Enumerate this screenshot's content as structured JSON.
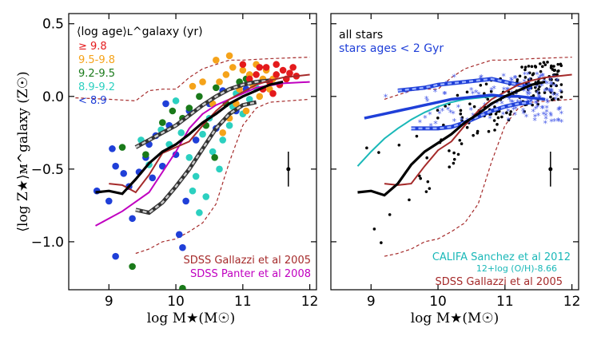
{
  "chart_data": [
    {
      "type": "scatter",
      "panel": "left",
      "ylabel": "⟨log Z★⟩ᴍ^galaxy (Z☉)",
      "xlabel": "log M★(M☉)",
      "xlim": [
        8.4,
        12.1
      ],
      "ylim": [
        -1.33,
        0.57
      ],
      "xticks": [
        9,
        10,
        11,
        12
      ],
      "yticks": [
        0.5,
        0.0,
        -0.5,
        -1.0
      ],
      "yticklabels": [
        "0.5",
        "0.0",
        "−0.5",
        "−1.0"
      ],
      "legend_title": "⟨log age⟩ʟ^galaxy  (yr)",
      "age_bins": [
        {
          "label": "≥ 9.8",
          "color": "#e41a1c"
        },
        {
          "label": "9.5-9.8",
          "color": "#f5a31a"
        },
        {
          "label": "9.2-9.5",
          "color": "#1a7a1a"
        },
        {
          "label": "8.9-9.2",
          "color": "#2cd0c0"
        },
        {
          "label": "< 8.9",
          "color": "#1f3fd8"
        }
      ],
      "series": [
        {
          "name": "median",
          "color": "#000000",
          "x": [
            8.8,
            9.0,
            9.2,
            9.4,
            9.6,
            9.8,
            10.0,
            10.2,
            10.4,
            10.6,
            10.8,
            11.0,
            11.2,
            11.4,
            11.6
          ],
          "y": [
            -0.66,
            -0.65,
            -0.67,
            -0.57,
            -0.46,
            -0.38,
            -0.33,
            -0.26,
            -0.18,
            -0.12,
            -0.05,
            0.0,
            0.04,
            0.08,
            0.1
          ]
        },
        {
          "name": "SDSS Gallazzi et al 2005",
          "color": "#a52a2a",
          "x": [
            9.0,
            9.2,
            9.4,
            9.6,
            9.8,
            10.0,
            10.2,
            10.4,
            10.6,
            10.8,
            11.0,
            11.2,
            11.4,
            11.6,
            12.0
          ],
          "y": [
            -0.6,
            -0.61,
            -0.66,
            -0.54,
            -0.39,
            -0.35,
            -0.31,
            -0.2,
            -0.1,
            -0.02,
            0.03,
            0.08,
            0.11,
            0.13,
            0.15
          ]
        },
        {
          "name": "SDSS Panter et al 2008",
          "color": "#c000c0",
          "x": [
            8.8,
            9.2,
            9.6,
            9.8,
            10.0,
            10.2,
            10.4,
            10.6,
            10.8,
            11.0,
            11.2,
            11.6,
            12.0
          ],
          "y": [
            -0.89,
            -0.79,
            -0.66,
            -0.52,
            -0.38,
            -0.22,
            -0.12,
            -0.06,
            -0.02,
            0.02,
            0.06,
            0.09,
            0.1
          ]
        },
        {
          "name": "upper band",
          "color": "#222222",
          "x": [
            9.4,
            9.6,
            9.8,
            10.0,
            10.2,
            10.4,
            10.6,
            10.8,
            11.0,
            11.2,
            11.4
          ],
          "y": [
            -0.35,
            -0.3,
            -0.25,
            -0.2,
            -0.13,
            -0.06,
            0.0,
            0.05,
            0.08,
            0.1,
            0.11
          ]
        },
        {
          "name": "lower band",
          "color": "#222222",
          "x": [
            9.4,
            9.6,
            9.8,
            10.0,
            10.2,
            10.4,
            10.6,
            10.8,
            11.0,
            11.2
          ],
          "y": [
            -0.78,
            -0.8,
            -0.73,
            -0.62,
            -0.5,
            -0.36,
            -0.22,
            -0.12,
            -0.06,
            -0.04
          ]
        },
        {
          "name": "Gallazzi upper",
          "color": "#a52a2a",
          "x": [
            8.5,
            9.0,
            9.4,
            9.6,
            9.8,
            10.0,
            10.2,
            10.4,
            10.6,
            10.8,
            11.0,
            11.4,
            12.0
          ],
          "y": [
            -0.01,
            -0.02,
            -0.03,
            0.04,
            0.05,
            0.05,
            0.13,
            0.19,
            0.22,
            0.25,
            0.25,
            0.26,
            0.27
          ]
        },
        {
          "name": "Gallazzi lower",
          "color": "#a52a2a",
          "x": [
            9.4,
            9.6,
            9.8,
            10.0,
            10.2,
            10.4,
            10.6,
            10.8,
            11.0,
            11.2,
            11.4,
            12.0
          ],
          "y": [
            -1.08,
            -1.05,
            -1.0,
            -0.98,
            -0.93,
            -0.87,
            -0.74,
            -0.45,
            -0.2,
            -0.08,
            -0.04,
            -0.02
          ]
        }
      ],
      "errorbar": {
        "x": 11.68,
        "y": -0.5,
        "err": 0.12
      },
      "points": [
        {
          "x": 8.82,
          "y": -0.65,
          "c": 4
        },
        {
          "x": 9.0,
          "y": -0.72,
          "c": 4
        },
        {
          "x": 9.05,
          "y": -0.36,
          "c": 4
        },
        {
          "x": 9.1,
          "y": -0.48,
          "c": 4
        },
        {
          "x": 9.22,
          "y": -0.53,
          "c": 4
        },
        {
          "x": 9.3,
          "y": -0.62,
          "c": 4
        },
        {
          "x": 9.1,
          "y": -1.1,
          "c": 4
        },
        {
          "x": 9.35,
          "y": -0.84,
          "c": 4
        },
        {
          "x": 9.45,
          "y": -0.52,
          "c": 4
        },
        {
          "x": 9.55,
          "y": -0.42,
          "c": 4
        },
        {
          "x": 9.6,
          "y": -0.33,
          "c": 4
        },
        {
          "x": 9.7,
          "y": -0.27,
          "c": 4
        },
        {
          "x": 9.65,
          "y": -0.56,
          "c": 4
        },
        {
          "x": 9.8,
          "y": -0.48,
          "c": 4
        },
        {
          "x": 9.9,
          "y": -0.2,
          "c": 4
        },
        {
          "x": 9.85,
          "y": -0.05,
          "c": 4
        },
        {
          "x": 10.0,
          "y": -0.4,
          "c": 4
        },
        {
          "x": 10.05,
          "y": -0.95,
          "c": 4
        },
        {
          "x": 10.1,
          "y": -1.04,
          "c": 4
        },
        {
          "x": 10.15,
          "y": -0.72,
          "c": 4
        },
        {
          "x": 10.3,
          "y": -0.3,
          "c": 4
        },
        {
          "x": 10.2,
          "y": -0.1,
          "c": 4
        },
        {
          "x": 10.5,
          "y": -0.05,
          "c": 4
        },
        {
          "x": 10.6,
          "y": -0.22,
          "c": 4
        },
        {
          "x": 10.7,
          "y": 0.04,
          "c": 4
        },
        {
          "x": 10.9,
          "y": -0.1,
          "c": 4
        },
        {
          "x": 11.05,
          "y": 0.05,
          "c": 4
        },
        {
          "x": 9.48,
          "y": -0.3,
          "c": 3
        },
        {
          "x": 9.6,
          "y": -0.47,
          "c": 3
        },
        {
          "x": 9.78,
          "y": -0.23,
          "c": 3
        },
        {
          "x": 9.9,
          "y": -0.33,
          "c": 3
        },
        {
          "x": 10.08,
          "y": -0.25,
          "c": 3
        },
        {
          "x": 10.2,
          "y": -0.42,
          "c": 3
        },
        {
          "x": 10.3,
          "y": -0.55,
          "c": 3
        },
        {
          "x": 10.4,
          "y": -0.26,
          "c": 3
        },
        {
          "x": 10.5,
          "y": -0.15,
          "c": 3
        },
        {
          "x": 10.55,
          "y": -0.38,
          "c": 3
        },
        {
          "x": 10.65,
          "y": -0.5,
          "c": 3
        },
        {
          "x": 10.7,
          "y": -0.3,
          "c": 3
        },
        {
          "x": 10.8,
          "y": -0.2,
          "c": 3
        },
        {
          "x": 10.85,
          "y": -0.07,
          "c": 3
        },
        {
          "x": 10.9,
          "y": 0.02,
          "c": 3
        },
        {
          "x": 11.0,
          "y": -0.12,
          "c": 3
        },
        {
          "x": 11.1,
          "y": -0.02,
          "c": 3
        },
        {
          "x": 11.2,
          "y": 0.06,
          "c": 3
        },
        {
          "x": 10.25,
          "y": -0.65,
          "c": 3
        },
        {
          "x": 10.35,
          "y": -0.8,
          "c": 3
        },
        {
          "x": 10.45,
          "y": -0.69,
          "c": 3
        },
        {
          "x": 10.0,
          "y": -0.03,
          "c": 3
        },
        {
          "x": 9.2,
          "y": -0.35,
          "c": 2
        },
        {
          "x": 9.55,
          "y": -0.4,
          "c": 2
        },
        {
          "x": 9.8,
          "y": -0.18,
          "c": 2
        },
        {
          "x": 9.95,
          "y": -0.1,
          "c": 2
        },
        {
          "x": 10.1,
          "y": -0.15,
          "c": 2
        },
        {
          "x": 10.2,
          "y": -0.08,
          "c": 2
        },
        {
          "x": 10.35,
          "y": 0.0,
          "c": 2
        },
        {
          "x": 10.45,
          "y": -0.2,
          "c": 2
        },
        {
          "x": 10.6,
          "y": 0.06,
          "c": 2
        },
        {
          "x": 10.75,
          "y": -0.05,
          "c": 2
        },
        {
          "x": 10.95,
          "y": 0.1,
          "c": 2
        },
        {
          "x": 11.05,
          "y": 0.12,
          "c": 2
        },
        {
          "x": 9.35,
          "y": -1.17,
          "c": 2
        },
        {
          "x": 10.1,
          "y": -1.32,
          "c": 2
        },
        {
          "x": 10.58,
          "y": -0.42,
          "c": 2
        },
        {
          "x": 10.25,
          "y": 0.07,
          "c": 1
        },
        {
          "x": 10.4,
          "y": 0.1,
          "c": 1
        },
        {
          "x": 10.55,
          "y": -0.05,
          "c": 1
        },
        {
          "x": 10.65,
          "y": 0.1,
          "c": 1
        },
        {
          "x": 10.75,
          "y": 0.15,
          "c": 1
        },
        {
          "x": 10.8,
          "y": -0.15,
          "c": 1
        },
        {
          "x": 10.85,
          "y": 0.2,
          "c": 1
        },
        {
          "x": 10.95,
          "y": 0.05,
          "c": 1
        },
        {
          "x": 11.0,
          "y": 0.18,
          "c": 1
        },
        {
          "x": 11.05,
          "y": -0.1,
          "c": 1
        },
        {
          "x": 11.1,
          "y": 0.15,
          "c": 1
        },
        {
          "x": 11.15,
          "y": 0.08,
          "c": 1
        },
        {
          "x": 11.2,
          "y": 0.22,
          "c": 1
        },
        {
          "x": 11.25,
          "y": 0.0,
          "c": 1
        },
        {
          "x": 11.3,
          "y": 0.12,
          "c": 1
        },
        {
          "x": 11.35,
          "y": 0.18,
          "c": 1
        },
        {
          "x": 11.4,
          "y": 0.05,
          "c": 1
        },
        {
          "x": 10.7,
          "y": -0.25,
          "c": 1
        },
        {
          "x": 10.9,
          "y": -0.05,
          "c": 1
        },
        {
          "x": 11.45,
          "y": 0.12,
          "c": 1
        },
        {
          "x": 10.6,
          "y": 0.25,
          "c": 1
        },
        {
          "x": 10.8,
          "y": 0.28,
          "c": 1
        },
        {
          "x": 11.1,
          "y": 0.12,
          "c": 0
        },
        {
          "x": 11.2,
          "y": 0.15,
          "c": 0
        },
        {
          "x": 11.3,
          "y": 0.05,
          "c": 0
        },
        {
          "x": 11.35,
          "y": 0.2,
          "c": 0
        },
        {
          "x": 11.4,
          "y": 0.1,
          "c": 0
        },
        {
          "x": 11.5,
          "y": 0.15,
          "c": 0
        },
        {
          "x": 11.55,
          "y": 0.08,
          "c": 0
        },
        {
          "x": 11.6,
          "y": 0.18,
          "c": 0
        },
        {
          "x": 11.65,
          "y": 0.12,
          "c": 0
        },
        {
          "x": 11.7,
          "y": 0.16,
          "c": 0
        },
        {
          "x": 11.75,
          "y": 0.2,
          "c": 0
        },
        {
          "x": 11.5,
          "y": 0.22,
          "c": 0
        },
        {
          "x": 11.8,
          "y": 0.14,
          "c": 0
        },
        {
          "x": 11.25,
          "y": 0.2,
          "c": 0
        },
        {
          "x": 11.45,
          "y": 0.02,
          "c": 0
        },
        {
          "x": 11.0,
          "y": 0.22,
          "c": 0
        }
      ],
      "annotations": [
        {
          "text": "SDSS Gallazzi et al 2005",
          "color": "#a52a2a"
        },
        {
          "text": "SDSS Panter et al 2008",
          "color": "#c000c0"
        }
      ]
    },
    {
      "type": "scatter",
      "panel": "right",
      "xlabel": "log M★(M☉)",
      "xlim": [
        8.4,
        12.1
      ],
      "ylim": [
        -1.33,
        0.57
      ],
      "xticks": [
        9,
        10,
        11,
        12
      ],
      "legend": [
        {
          "text": "all stars",
          "color": "#000000"
        },
        {
          "text": "stars ages < 2 Gyr",
          "color": "#1f3fd8"
        }
      ],
      "series": [
        {
          "name": "all stars median",
          "color": "#000000",
          "x": [
            8.8,
            9.0,
            9.2,
            9.4,
            9.6,
            9.8,
            10.0,
            10.2,
            10.4,
            10.6,
            10.8,
            11.0,
            11.2,
            11.4,
            11.6
          ],
          "y": [
            -0.66,
            -0.65,
            -0.68,
            -0.6,
            -0.47,
            -0.38,
            -0.32,
            -0.26,
            -0.18,
            -0.12,
            -0.05,
            0.0,
            0.04,
            0.08,
            0.1
          ]
        },
        {
          "name": "young stars median",
          "color": "#1f3fd8",
          "x": [
            8.9,
            9.2,
            9.4,
            9.6,
            9.8,
            10.0,
            10.2,
            10.4,
            10.6,
            10.8,
            11.0,
            11.2,
            11.4,
            11.6
          ],
          "y": [
            -0.15,
            -0.12,
            -0.1,
            -0.08,
            -0.06,
            -0.04,
            -0.02,
            -0.01,
            0.0,
            0.01,
            0.0,
            0.0,
            -0.01,
            -0.02
          ]
        },
        {
          "name": "CALIFA Sanchez et al 2012",
          "color": "#1ab8b8",
          "x": [
            8.8,
            9.0,
            9.2,
            9.4,
            9.6,
            9.8,
            10.0,
            10.2,
            10.4,
            10.6,
            10.8,
            11.0,
            11.2
          ],
          "y": [
            -0.48,
            -0.38,
            -0.29,
            -0.22,
            -0.16,
            -0.11,
            -0.07,
            -0.04,
            -0.02,
            -0.01,
            0.0,
            0.0,
            0.0
          ]
        },
        {
          "name": "SDSS Gallazzi et al 2005",
          "color": "#a52a2a",
          "x": [
            9.2,
            9.4,
            9.6,
            9.8,
            10.0,
            10.2,
            10.4,
            10.6,
            10.8,
            11.0,
            11.2,
            11.4,
            11.6,
            12.0
          ],
          "y": [
            -0.6,
            -0.61,
            -0.6,
            -0.48,
            -0.37,
            -0.31,
            -0.2,
            -0.1,
            -0.02,
            0.03,
            0.08,
            0.11,
            0.13,
            0.15
          ]
        },
        {
          "name": "young upper band",
          "color": "#1f3fd8",
          "x": [
            9.4,
            9.6,
            9.8,
            10.0,
            10.2,
            10.4,
            10.6,
            10.8,
            11.0,
            11.2,
            11.4
          ],
          "y": [
            0.04,
            0.05,
            0.06,
            0.08,
            0.09,
            0.1,
            0.11,
            0.12,
            0.1,
            0.08,
            0.06
          ]
        },
        {
          "name": "young lower band",
          "color": "#1f3fd8",
          "x": [
            9.6,
            9.8,
            10.0,
            10.2,
            10.4,
            10.6,
            10.8,
            11.0,
            11.2,
            11.4
          ],
          "y": [
            -0.22,
            -0.22,
            -0.22,
            -0.21,
            -0.18,
            -0.14,
            -0.1,
            -0.07,
            -0.05,
            -0.04
          ]
        },
        {
          "name": "Gallazzi upper",
          "color": "#a52a2a",
          "x": [
            9.2,
            9.6,
            9.8,
            10.0,
            10.2,
            10.4,
            10.6,
            10.8,
            11.0,
            11.4,
            12.0
          ],
          "y": [
            -0.02,
            0.04,
            0.05,
            0.05,
            0.13,
            0.19,
            0.22,
            0.25,
            0.25,
            0.26,
            0.27
          ]
        },
        {
          "name": "Gallazzi lower",
          "color": "#a52a2a",
          "x": [
            9.2,
            9.4,
            9.6,
            9.8,
            10.0,
            10.2,
            10.4,
            10.6,
            10.8,
            11.0,
            11.2,
            11.4,
            12.0
          ],
          "y": [
            -1.1,
            -1.08,
            -1.05,
            -1.0,
            -0.98,
            -0.93,
            -0.87,
            -0.74,
            -0.45,
            -0.2,
            -0.08,
            -0.04,
            -0.02
          ]
        }
      ],
      "errorbar": {
        "x": 11.68,
        "y": -0.5,
        "err": 0.12
      },
      "annotations": [
        {
          "text": "CALIFA Sanchez et al 2012",
          "color": "#1ab8b8"
        },
        {
          "text": "12+log (O/H)-8.66",
          "color": "#1ab8b8"
        },
        {
          "text": "SDSS Gallazzi et al 2005",
          "color": "#a52a2a"
        }
      ]
    }
  ]
}
